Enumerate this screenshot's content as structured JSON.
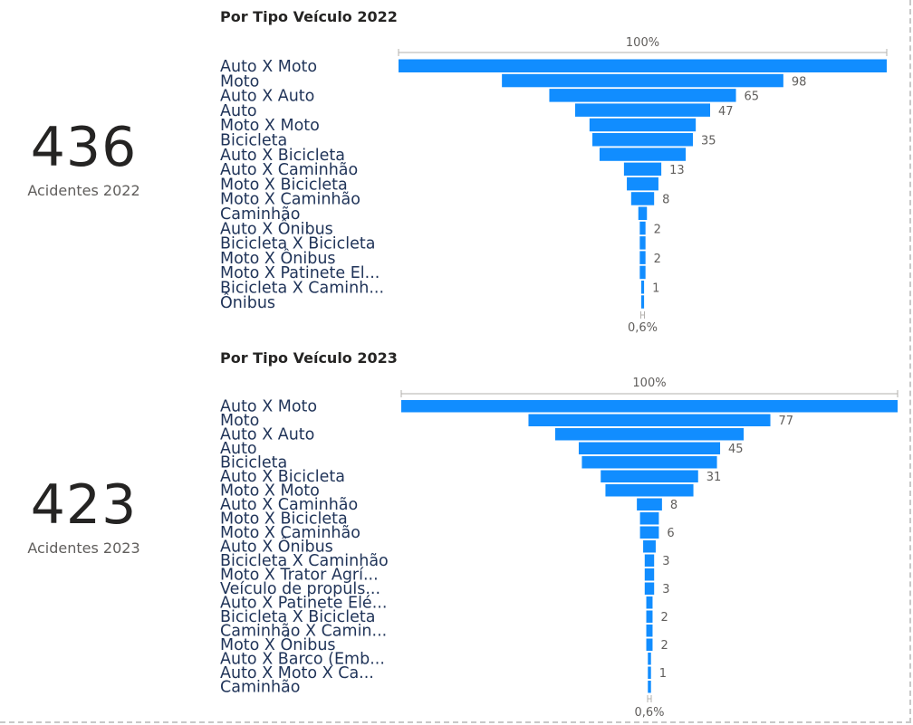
{
  "kpis": [
    {
      "value": "436",
      "label": "Acidentes 2022"
    },
    {
      "value": "423",
      "label": "Acidentes 2023"
    }
  ],
  "colors": {
    "bar": "#118DFF",
    "category_text": "#1f3358",
    "muted_text": "#605e5c"
  },
  "chart_data": [
    {
      "type": "bar",
      "subtype": "funnel",
      "title": "Por Tipo Veículo 2022",
      "top_label": "100%",
      "bottom_label": "0,6%",
      "categories": [
        "Auto X Moto",
        "Moto",
        "Auto X Auto",
        "Auto",
        "Moto X Moto",
        "Bicicleta",
        "Auto X Bicicleta",
        "Auto X Caminhão",
        "Moto X Bicicleta",
        "Moto X Caminhão",
        "Caminhão",
        "Auto X Ônibus",
        "Bicicleta X Bicicleta",
        "Moto X Ônibus",
        "Moto X Patinete El...",
        "Bicicleta X Caminh...",
        "Ônibus"
      ],
      "values": [
        170,
        98,
        65,
        47,
        37,
        35,
        30,
        13,
        11,
        8,
        3,
        2,
        2,
        2,
        2,
        1,
        1
      ],
      "data_labels": [
        "",
        "98",
        "65",
        "47",
        "",
        "35",
        "",
        "13",
        "",
        "8",
        "",
        "2",
        "",
        "2",
        "",
        "1",
        ""
      ]
    },
    {
      "type": "bar",
      "subtype": "funnel",
      "title": "Por Tipo Veículo 2023",
      "top_label": "100%",
      "bottom_label": "0,6%",
      "categories": [
        "Auto X Moto",
        "Moto",
        "Auto X Auto",
        "Auto",
        "Bicicleta",
        "Auto X Bicicleta",
        "Moto X Moto",
        "Auto X Caminhão",
        "Moto X Bicicleta",
        "Moto X Caminhão",
        "Auto X Ônibus",
        "Bicicleta X Caminhão",
        "Moto X Trator Agrí...",
        "Veículo de propuls...",
        "Auto X Patinete Elé...",
        "Bicicleta X Bicicleta",
        "Caminhão X Camin...",
        "Moto X Ônibus",
        "Auto X Barco (Emb...",
        "Auto X Moto X Ca...",
        "Caminhão"
      ],
      "values": [
        158,
        77,
        60,
        45,
        43,
        31,
        28,
        8,
        6,
        6,
        4,
        3,
        3,
        3,
        2,
        2,
        2,
        2,
        1,
        1,
        1
      ],
      "data_labels": [
        "",
        "77",
        "",
        "45",
        "",
        "31",
        "",
        "8",
        "",
        "6",
        "",
        "3",
        "",
        "3",
        "",
        "2",
        "",
        "2",
        "",
        "1",
        ""
      ]
    }
  ]
}
